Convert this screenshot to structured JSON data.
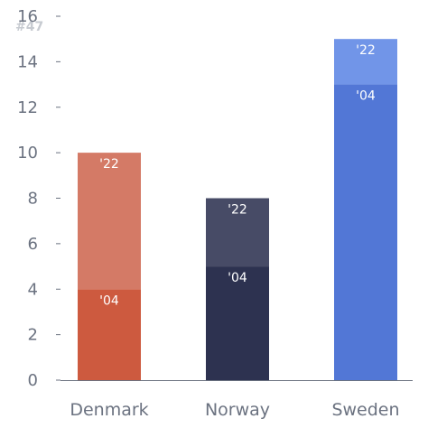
{
  "watermark": "#47",
  "chart_data": {
    "type": "bar",
    "stacked": true,
    "title": "",
    "xlabel": "",
    "ylabel": "",
    "ylim": [
      0,
      16
    ],
    "yticks": [
      0,
      2,
      4,
      6,
      8,
      10,
      12,
      14,
      16
    ],
    "grid": false,
    "categories": [
      "Denmark",
      "Norway",
      "Sweden"
    ],
    "series": [
      {
        "label": "'04",
        "values": [
          4,
          5,
          13
        ],
        "colors": [
          "#cd5a3f",
          "#2d3250",
          "#5277d6"
        ]
      },
      {
        "label": "'22",
        "values": [
          6,
          3,
          2
        ],
        "colors": [
          "#d47a66",
          "#474b66",
          "#7195e8"
        ]
      }
    ]
  }
}
